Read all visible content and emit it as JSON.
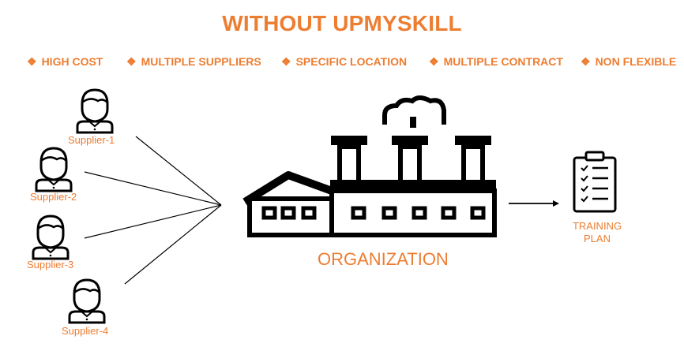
{
  "title": "WITHOUT UPMYSKILL",
  "bullet_glyph": "❖",
  "bullets": [
    "HIGH COST",
    "MULTIPLE SUPPLIERS",
    "SPECIFIC LOCATION",
    "MULTIPLE CONTRACT",
    "NON FLEXIBLE"
  ],
  "suppliers": [
    "Supplier-1",
    "Supplier-2",
    "Supplier-3",
    "Supplier-4"
  ],
  "organization": "ORGANIZATION",
  "training_plan": [
    "TRAINING",
    "PLAN"
  ],
  "colors": {
    "accent": "#ed7d31",
    "ink": "#000000"
  },
  "icons": {
    "supplier": "person-icon",
    "organization": "factory-icon",
    "training": "clipboard-checklist-icon"
  }
}
